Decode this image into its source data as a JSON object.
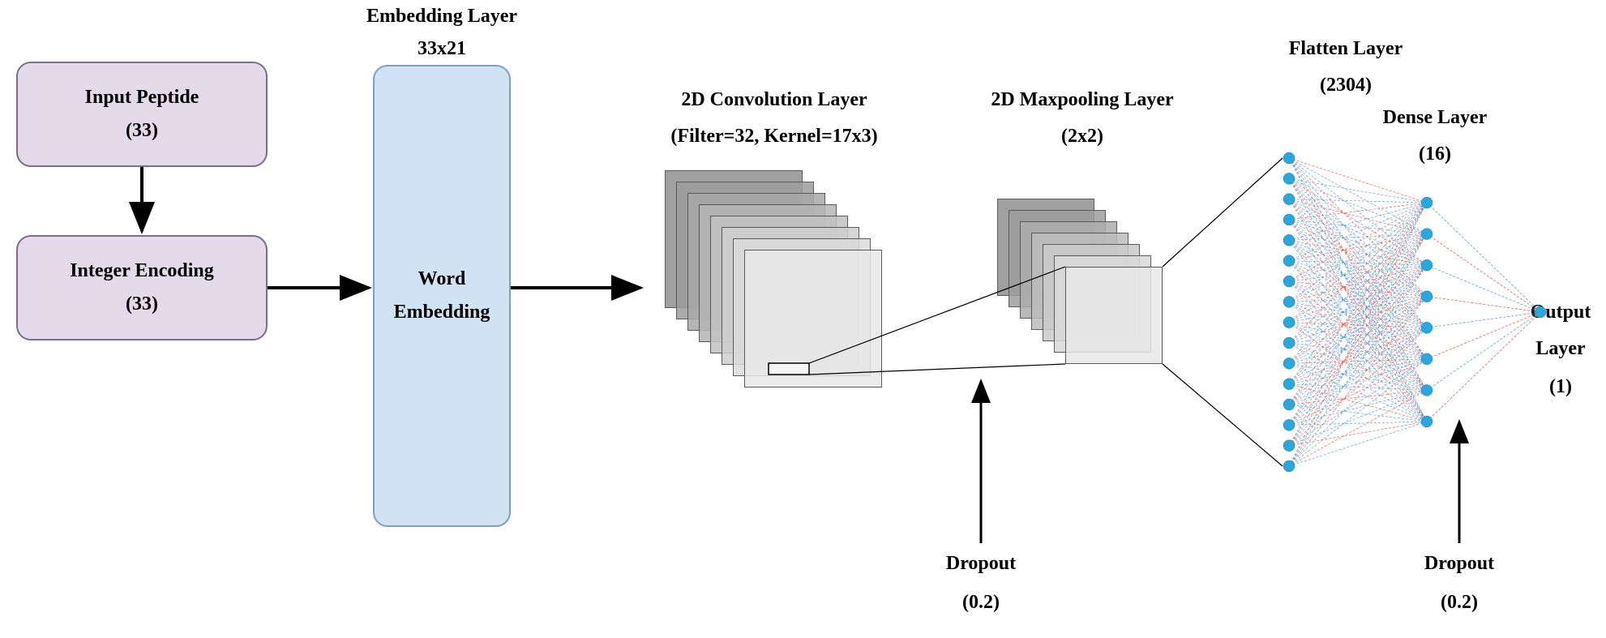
{
  "font": {
    "title_size": 24,
    "body_size": 24
  },
  "colors": {
    "bg": "#ffffff",
    "purple_fill": "#e4daea",
    "purple_border": "#7c6e8b",
    "blue_fill": "#cfe3f5",
    "blue_border": "#7aa0c8",
    "tile_dark": "#8f8f8f",
    "tile_light": "#e8e8e8",
    "tile_border": "#5a5a5a",
    "arrow": "#000000",
    "node": "#29a8e0",
    "edge_red": "#e74c3c",
    "edge_blue": "#4a90e2"
  },
  "input_box": {
    "title": "Input Peptide",
    "sub": "(33)"
  },
  "encoding_box": {
    "title": "Integer Encoding",
    "sub": "(33)"
  },
  "embedding": {
    "header": "Embedding Layer",
    "dims": "33x21",
    "body1": "Word",
    "body2": "Embedding"
  },
  "conv": {
    "title": "2D Convolution Layer",
    "sub": "(Filter=32, Kernel=17x3)",
    "n_tiles": 8,
    "tile_size": 170,
    "step": 14
  },
  "pool": {
    "title": "2D Maxpooling Layer",
    "sub": "(2x2)",
    "n_tiles": 7,
    "tile_size": 120,
    "step": 14
  },
  "dropout1": {
    "title": "Dropout",
    "sub": "(0.2)"
  },
  "dropout2": {
    "title": "Dropout",
    "sub": "(0.2)"
  },
  "flatten": {
    "title": "Flatten Layer",
    "sub": "(2304)"
  },
  "dense": {
    "title": "Dense Layer",
    "sub": "(16)"
  },
  "output": {
    "title": "Output",
    "sub": "Layer",
    "count": "(1)"
  },
  "nn": {
    "col1_n": 16,
    "col2_n": 8,
    "col3_n": 1,
    "node_r": 7
  }
}
